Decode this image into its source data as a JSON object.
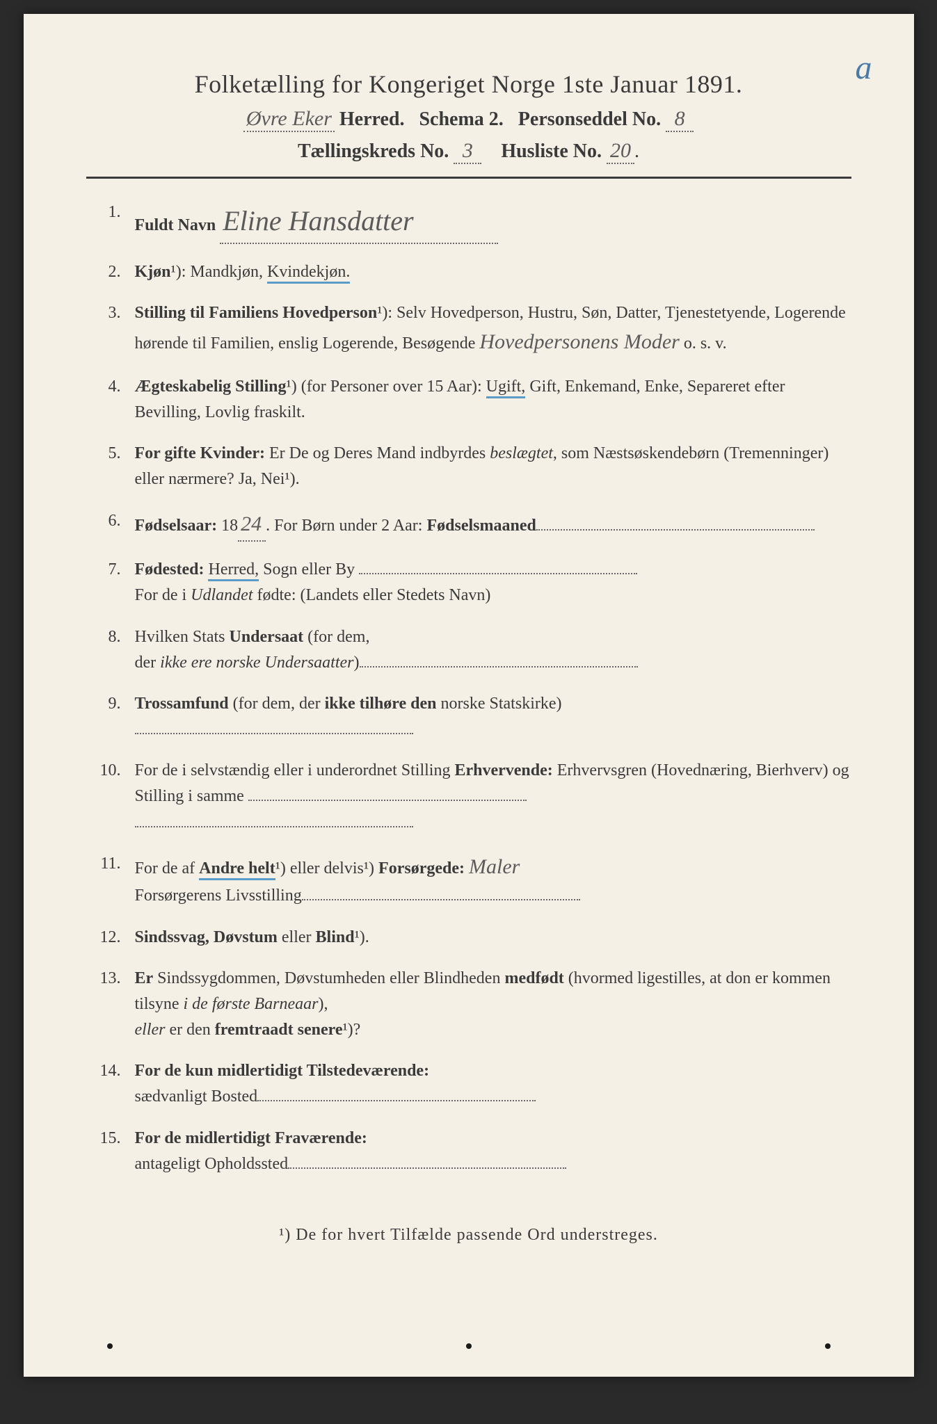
{
  "corner_mark": "a",
  "header": {
    "title": "Folketælling for Kongeriget Norge 1ste Januar 1891.",
    "herred_value": "Øvre Eker",
    "line2_labels": {
      "herred": "Herred.",
      "schema": "Schema 2.",
      "personseddel": "Personseddel No."
    },
    "personseddel_no": "8",
    "line3_labels": {
      "taellingskreds": "Tællingskreds No.",
      "husliste": "Husliste No."
    },
    "taellingskreds_no": "3",
    "husliste_no": "20"
  },
  "items": [
    {
      "num": "1.",
      "label": "Fuldt Navn",
      "value": "Eline Hansdatter"
    },
    {
      "num": "2.",
      "parts": [
        {
          "t": "Kjøn",
          "bold": true
        },
        {
          "t": "¹): Mandkjøn, "
        },
        {
          "t": "Kvindekjøn.",
          "blue": true
        }
      ]
    },
    {
      "num": "3.",
      "parts": [
        {
          "t": "Stilling til Familiens Hovedperson",
          "bold": true
        },
        {
          "t": "¹): Selv Hovedperson, Hustru, Søn, Datter, Tjenestetyende, Logerende hørende til Familien, enslig Logerende, Besøgende "
        },
        {
          "t": "Hovedpersonens Moder",
          "hand": true
        },
        {
          "t": " o. s. v."
        }
      ]
    },
    {
      "num": "4.",
      "parts": [
        {
          "t": "Ægteskabelig Stilling",
          "bold": true
        },
        {
          "t": "¹) (for Personer over 15 Aar): "
        },
        {
          "t": "Ugift,",
          "blue": true
        },
        {
          "t": " Gift, Enkemand, Enke, Separeret efter Bevilling, Lovlig fraskilt."
        }
      ]
    },
    {
      "num": "5.",
      "parts": [
        {
          "t": "For gifte Kvinder:",
          "bold": true
        },
        {
          "t": " Er De og Deres Mand indbyrdes "
        },
        {
          "t": "beslægtet",
          "italic": true
        },
        {
          "t": ", som Næstsøskendebørn (Tremenninger) eller nærmere?  Ja, Nei¹)."
        }
      ]
    },
    {
      "num": "6.",
      "parts": [
        {
          "t": "Fødselsaar:",
          "bold": true
        },
        {
          "t": " 18"
        },
        {
          "t": "24",
          "hand": true,
          "dotted": true
        },
        {
          "t": ".   For Børn under 2 Aar: "
        },
        {
          "t": "Fødselsmaaned",
          "bold": true
        },
        {
          "t": "",
          "dotted_long": true
        }
      ]
    },
    {
      "num": "7.",
      "parts": [
        {
          "t": "Fødested:",
          "bold": true
        },
        {
          "t": " "
        },
        {
          "t": "Herred,",
          "blue": true
        },
        {
          "t": " Sogn eller By "
        },
        {
          "t": "",
          "dotted_long": true
        },
        {
          "br": true
        },
        {
          "t": "For de i "
        },
        {
          "t": "Udlandet",
          "italic": true
        },
        {
          "t": " fødte: (Landets eller Stedets Navn)"
        }
      ]
    },
    {
      "num": "8.",
      "parts": [
        {
          "t": "Hvilken Stats "
        },
        {
          "t": "Undersaat",
          "bold": true
        },
        {
          "t": " (for dem,"
        },
        {
          "br": true
        },
        {
          "t": "der "
        },
        {
          "t": "ikke ere norske Undersaatter",
          "italic": true
        },
        {
          "t": ")"
        },
        {
          "t": "",
          "dotted_long": true
        }
      ]
    },
    {
      "num": "9.",
      "parts": [
        {
          "t": "Trossamfund",
          "bold": true
        },
        {
          "t": " (for dem, der "
        },
        {
          "t": "ikke tilhøre den",
          "bold": true
        },
        {
          "t": " norske Statskirke)"
        },
        {
          "br": true
        },
        {
          "t": "",
          "dotted_long": true
        }
      ]
    },
    {
      "num": "10.",
      "parts": [
        {
          "t": "For de i selvstændig eller i underordnet Stilling "
        },
        {
          "t": "Erhvervende:",
          "bold": true
        },
        {
          "t": " Erhvervsgren (Hovednæring, Bierhverv) og Stilling i samme "
        },
        {
          "t": "",
          "dotted_long": true
        },
        {
          "br": true
        },
        {
          "t": "",
          "dotted_long": true
        }
      ]
    },
    {
      "num": "11.",
      "parts": [
        {
          "t": "For de af "
        },
        {
          "t": "Andre helt",
          "bold": true,
          "blue": true
        },
        {
          "t": "¹) eller delvis¹) "
        },
        {
          "t": "Forsørgede:",
          "bold": true
        },
        {
          "t": " "
        },
        {
          "t": "Maler",
          "hand": true
        },
        {
          "br": true
        },
        {
          "t": "Forsørgerens Livsstilling"
        },
        {
          "t": "",
          "dotted_long": true
        }
      ]
    },
    {
      "num": "12.",
      "parts": [
        {
          "t": "Sindssvag, Døvstum",
          "bold": true
        },
        {
          "t": " eller "
        },
        {
          "t": "Blind",
          "bold": true
        },
        {
          "t": "¹)."
        }
      ]
    },
    {
      "num": "13.",
      "parts": [
        {
          "t": "Er",
          "bold": true
        },
        {
          "t": " Sindssygdommen, Døvstumheden eller Blindheden "
        },
        {
          "t": "medfødt",
          "bold": true
        },
        {
          "t": " (hvormed ligestilles, at don er kommen tilsyne "
        },
        {
          "t": "i de første Barneaar",
          "italic": true
        },
        {
          "t": "),"
        },
        {
          "br": true
        },
        {
          "t": "eller",
          "italic": true
        },
        {
          "t": " er den "
        },
        {
          "t": "fremtraadt senere",
          "bold": true
        },
        {
          "t": "¹)?"
        }
      ]
    },
    {
      "num": "14.",
      "parts": [
        {
          "t": "For de kun midlertidigt Tilstedeværende:",
          "bold": true
        },
        {
          "br": true
        },
        {
          "t": "sædvanligt Bosted"
        },
        {
          "t": "",
          "dotted_long": true
        }
      ]
    },
    {
      "num": "15.",
      "parts": [
        {
          "t": "For de midlertidigt Fraværende:",
          "bold": true
        },
        {
          "br": true
        },
        {
          "t": "antageligt Opholdssted"
        },
        {
          "t": "",
          "dotted_long": true
        }
      ]
    }
  ],
  "footnote": "¹) De for hvert Tilfælde passende Ord understreges.",
  "colors": {
    "paper": "#f5f0e6",
    "ink": "#3a3a3a",
    "blue_underline": "#5a9bc8",
    "handwriting": "#5a5a5a",
    "corner": "#4a7ba8"
  },
  "typography": {
    "title_size_pt": 27,
    "body_size_pt": 18,
    "font_family": "serif"
  }
}
